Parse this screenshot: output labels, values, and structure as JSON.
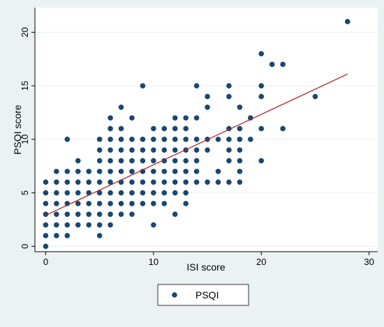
{
  "chart_data": {
    "type": "scatter",
    "xlabel": "ISI score",
    "ylabel": "PSQI score",
    "xlim": [
      -1,
      30.8
    ],
    "ylim": [
      -0.5,
      22.3
    ],
    "x_ticks": [
      0,
      10,
      20,
      30
    ],
    "y_ticks": [
      0,
      5,
      10,
      15,
      20
    ],
    "grid": true,
    "legend": {
      "placement": "bottom",
      "entries": [
        "PSQI"
      ]
    },
    "colors": {
      "points": "#1a476f",
      "fit_line": "#b22222",
      "background": "#eaf2f3",
      "plot_area": "#ffffff"
    },
    "series": [
      {
        "name": "PSQI",
        "points": [
          [
            0,
            0
          ],
          [
            0,
            1
          ],
          [
            0,
            2
          ],
          [
            0,
            3
          ],
          [
            0,
            4
          ],
          [
            0,
            5
          ],
          [
            0,
            6
          ],
          [
            1,
            1
          ],
          [
            1,
            2
          ],
          [
            1,
            3
          ],
          [
            1,
            4
          ],
          [
            1,
            5
          ],
          [
            1,
            6
          ],
          [
            1,
            7
          ],
          [
            2,
            1
          ],
          [
            2,
            2
          ],
          [
            2,
            3
          ],
          [
            2,
            4
          ],
          [
            2,
            5
          ],
          [
            2,
            6
          ],
          [
            2,
            7
          ],
          [
            2,
            10
          ],
          [
            3,
            2
          ],
          [
            3,
            3
          ],
          [
            3,
            4
          ],
          [
            3,
            5
          ],
          [
            3,
            6
          ],
          [
            3,
            7
          ],
          [
            3,
            8
          ],
          [
            4,
            2
          ],
          [
            4,
            3
          ],
          [
            4,
            4
          ],
          [
            4,
            5
          ],
          [
            4,
            6
          ],
          [
            4,
            7
          ],
          [
            5,
            1
          ],
          [
            5,
            2
          ],
          [
            5,
            3
          ],
          [
            5,
            4
          ],
          [
            5,
            5
          ],
          [
            5,
            6
          ],
          [
            5,
            7
          ],
          [
            5,
            8
          ],
          [
            5,
            9
          ],
          [
            5,
            10
          ],
          [
            6,
            2
          ],
          [
            6,
            3
          ],
          [
            6,
            4
          ],
          [
            6,
            5
          ],
          [
            6,
            6
          ],
          [
            6,
            7
          ],
          [
            6,
            8
          ],
          [
            6,
            9
          ],
          [
            6,
            10
          ],
          [
            6,
            11
          ],
          [
            6,
            12
          ],
          [
            7,
            3
          ],
          [
            7,
            4
          ],
          [
            7,
            5
          ],
          [
            7,
            6
          ],
          [
            7,
            7
          ],
          [
            7,
            8
          ],
          [
            7,
            9
          ],
          [
            7,
            10
          ],
          [
            7,
            11
          ],
          [
            7,
            13
          ],
          [
            8,
            3
          ],
          [
            8,
            4
          ],
          [
            8,
            5
          ],
          [
            8,
            6
          ],
          [
            8,
            7
          ],
          [
            8,
            8
          ],
          [
            8,
            9
          ],
          [
            8,
            10
          ],
          [
            8,
            12
          ],
          [
            9,
            4
          ],
          [
            9,
            5
          ],
          [
            9,
            6
          ],
          [
            9,
            7
          ],
          [
            9,
            8
          ],
          [
            9,
            9
          ],
          [
            9,
            10
          ],
          [
            9,
            15
          ],
          [
            10,
            2
          ],
          [
            10,
            4
          ],
          [
            10,
            5
          ],
          [
            10,
            6
          ],
          [
            10,
            7
          ],
          [
            10,
            8
          ],
          [
            10,
            9
          ],
          [
            10,
            10
          ],
          [
            10,
            11
          ],
          [
            11,
            4
          ],
          [
            11,
            5
          ],
          [
            11,
            6
          ],
          [
            11,
            7
          ],
          [
            11,
            8
          ],
          [
            11,
            9
          ],
          [
            11,
            10
          ],
          [
            11,
            11
          ],
          [
            12,
            3
          ],
          [
            12,
            5
          ],
          [
            12,
            6
          ],
          [
            12,
            7
          ],
          [
            12,
            8
          ],
          [
            12,
            9
          ],
          [
            12,
            10
          ],
          [
            12,
            11
          ],
          [
            12,
            12
          ],
          [
            13,
            4
          ],
          [
            13,
            5
          ],
          [
            13,
            6
          ],
          [
            13,
            7
          ],
          [
            13,
            8
          ],
          [
            13,
            9
          ],
          [
            13,
            10
          ],
          [
            13,
            11
          ],
          [
            13,
            12
          ],
          [
            14,
            6
          ],
          [
            14,
            7
          ],
          [
            14,
            8
          ],
          [
            14,
            9
          ],
          [
            14,
            10
          ],
          [
            14,
            12
          ],
          [
            14,
            15
          ],
          [
            15,
            6
          ],
          [
            15,
            9
          ],
          [
            15,
            10
          ],
          [
            15,
            13
          ],
          [
            15,
            14
          ],
          [
            16,
            6
          ],
          [
            16,
            7
          ],
          [
            16,
            10
          ],
          [
            17,
            6
          ],
          [
            17,
            8
          ],
          [
            17,
            9
          ],
          [
            17,
            10
          ],
          [
            17,
            11
          ],
          [
            17,
            14
          ],
          [
            17,
            15
          ],
          [
            18,
            6
          ],
          [
            18,
            7
          ],
          [
            18,
            8
          ],
          [
            18,
            9
          ],
          [
            18,
            10
          ],
          [
            18,
            11
          ],
          [
            18,
            13
          ],
          [
            19,
            10
          ],
          [
            19,
            12
          ],
          [
            20,
            8
          ],
          [
            20,
            11
          ],
          [
            20,
            14
          ],
          [
            20,
            15
          ],
          [
            20,
            18
          ],
          [
            21,
            17
          ],
          [
            22,
            11
          ],
          [
            22,
            17
          ],
          [
            25,
            14
          ],
          [
            28,
            21
          ]
        ]
      }
    ],
    "fit_line": {
      "x": [
        0,
        28
      ],
      "y": [
        2.9,
        16.1
      ]
    }
  }
}
